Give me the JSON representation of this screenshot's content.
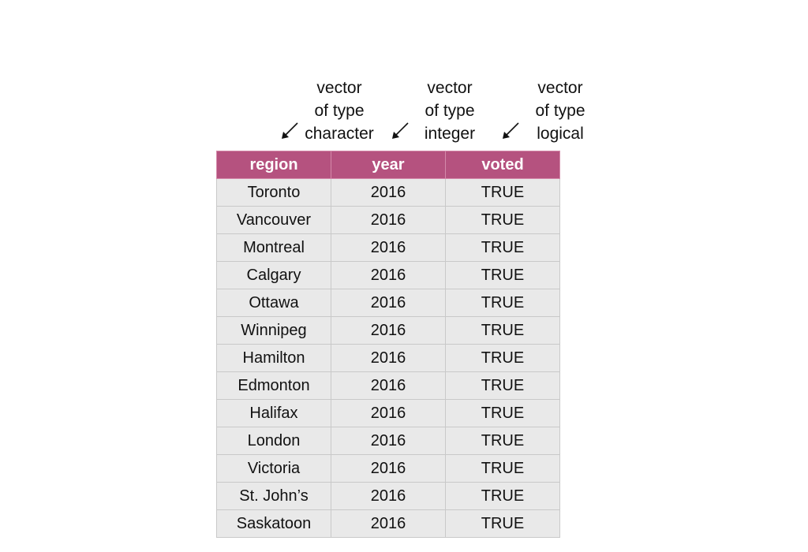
{
  "annotations": [
    {
      "lines": [
        "vector",
        "of type",
        "character"
      ]
    },
    {
      "lines": [
        "vector",
        "of type",
        "integer"
      ]
    },
    {
      "lines": [
        "vector",
        "of type",
        "logical"
      ]
    }
  ],
  "table": {
    "headers": [
      "region",
      "year",
      "voted"
    ],
    "header_color": "#b5527f",
    "cell_color": "#e9e9e9",
    "rows": [
      [
        "Toronto",
        "2016",
        "TRUE"
      ],
      [
        "Vancouver",
        "2016",
        "TRUE"
      ],
      [
        "Montreal",
        "2016",
        "TRUE"
      ],
      [
        "Calgary",
        "2016",
        "TRUE"
      ],
      [
        "Ottawa",
        "2016",
        "TRUE"
      ],
      [
        "Winnipeg",
        "2016",
        "TRUE"
      ],
      [
        "Hamilton",
        "2016",
        "TRUE"
      ],
      [
        "Edmonton",
        "2016",
        "TRUE"
      ],
      [
        "Halifax",
        "2016",
        "TRUE"
      ],
      [
        "London",
        "2016",
        "TRUE"
      ],
      [
        "Victoria",
        "2016",
        "TRUE"
      ],
      [
        "St. John’s",
        "2016",
        "TRUE"
      ],
      [
        "Saskatoon",
        "2016",
        "TRUE"
      ]
    ]
  }
}
